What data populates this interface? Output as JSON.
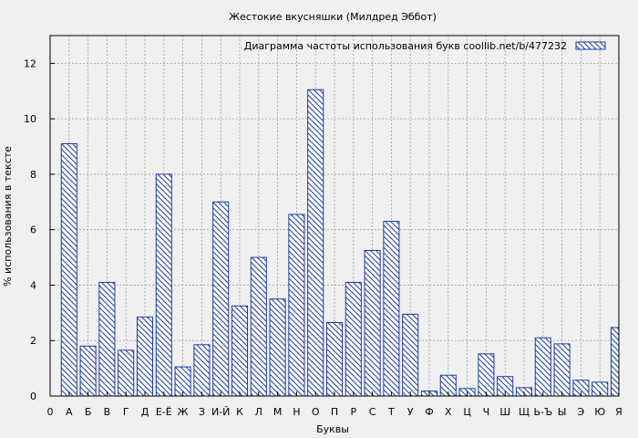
{
  "chart_data": {
    "type": "bar",
    "title": "Жестокие вкусняшки (Милдред Эббот)",
    "xlabel": "Буквы",
    "ylabel": "% использования в тексте",
    "legend_label": "Диаграмма частоты использования букв  coollib.net/b/477232",
    "legend_position": "top-right",
    "grid": true,
    "ylim": [
      0,
      13
    ],
    "yticks": [
      0,
      2,
      4,
      6,
      8,
      10,
      12
    ],
    "tick_labels": [
      "0",
      "А",
      "Б",
      "В",
      "Г",
      "Д",
      "Е-Ё",
      "Ж",
      "З",
      "И-Й",
      "К",
      "Л",
      "М",
      "Н",
      "О",
      "П",
      "Р",
      "С",
      "Т",
      "У",
      "Ф",
      "Х",
      "Ц",
      "Ч",
      "Ш",
      "Щ",
      "Ь-Ъ",
      "Ы",
      "Э",
      "Ю",
      "Я"
    ],
    "categories": [
      "А",
      "Б",
      "В",
      "Г",
      "Д",
      "Е-Ё",
      "Ж",
      "З",
      "И-Й",
      "К",
      "Л",
      "М",
      "Н",
      "О",
      "П",
      "Р",
      "С",
      "Т",
      "У",
      "Ф",
      "Х",
      "Ц",
      "Ч",
      "Ш",
      "Щ",
      "Ь-Ъ",
      "Ы",
      "Э",
      "Ю",
      "Я"
    ],
    "values": [
      9.1,
      1.8,
      4.1,
      1.65,
      2.85,
      8.0,
      1.05,
      1.85,
      7.0,
      3.25,
      5.0,
      3.5,
      6.55,
      11.05,
      2.65,
      4.1,
      5.25,
      6.3,
      2.95,
      0.18,
      0.75,
      0.27,
      1.52,
      0.7,
      0.3,
      2.1,
      1.88,
      0.57,
      0.5,
      2.47
    ],
    "colors": {
      "bar_stroke": "#1c3c9c",
      "bar_fill": "#ffffff",
      "grid": "#a0a0a0",
      "background": "#f0f0f0"
    }
  }
}
